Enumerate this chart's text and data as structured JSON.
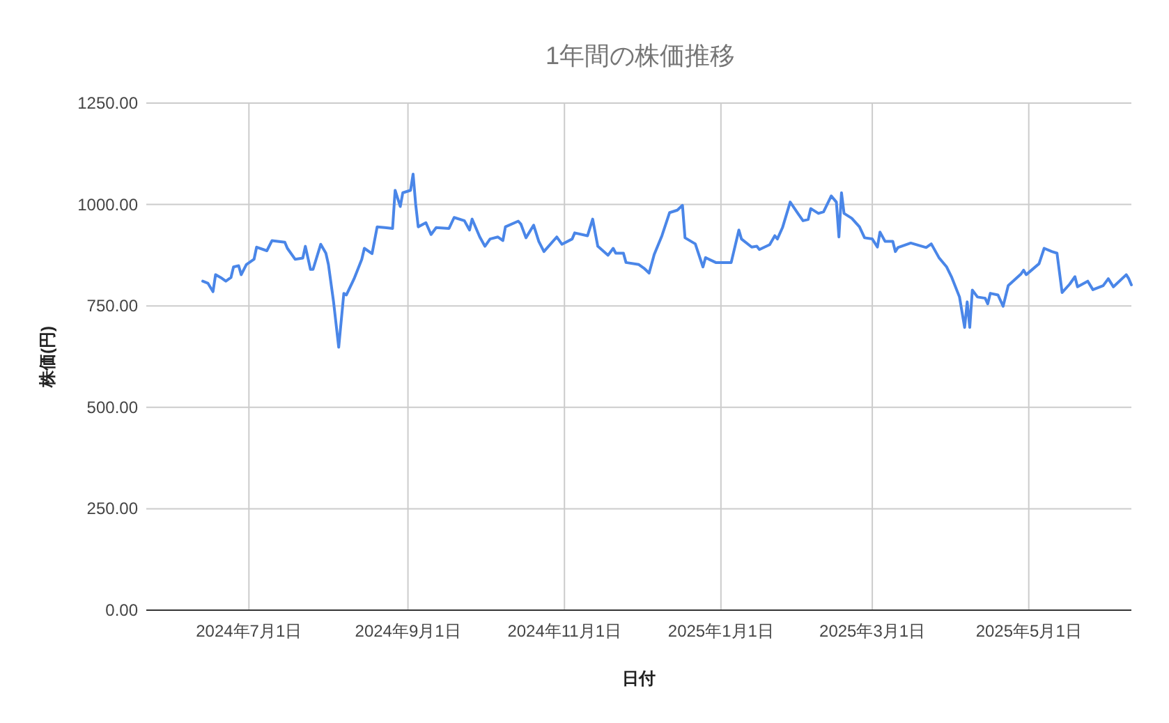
{
  "chart_data": {
    "type": "line",
    "title": "1年間の株価推移",
    "xlabel": "日付",
    "ylabel": "株価(円)",
    "grid": true,
    "xlim": [
      "2024-05-22",
      "2025-06-10"
    ],
    "ylim": [
      0,
      1250
    ],
    "xticks": [
      {
        "value": "2024-07-01",
        "label": "2024年7月1日"
      },
      {
        "value": "2024-09-01",
        "label": "2024年9月1日"
      },
      {
        "value": "2024-11-01",
        "label": "2024年11月1日"
      },
      {
        "value": "2025-01-01",
        "label": "2025年1月1日"
      },
      {
        "value": "2025-03-01",
        "label": "2025年3月1日"
      },
      {
        "value": "2025-05-01",
        "label": "2025年5月1日"
      }
    ],
    "yticks": [
      {
        "value": 0,
        "label": "0.00"
      },
      {
        "value": 250,
        "label": "250.00"
      },
      {
        "value": 500,
        "label": "500.00"
      },
      {
        "value": 750,
        "label": "750.00"
      },
      {
        "value": 1000,
        "label": "1000.00"
      },
      {
        "value": 1250,
        "label": "1250.00"
      }
    ],
    "x": [
      "2024-06-13",
      "2024-06-15",
      "2024-06-17",
      "2024-06-18",
      "2024-06-20",
      "2024-06-22",
      "2024-06-24",
      "2024-06-25",
      "2024-06-27",
      "2024-06-28",
      "2024-06-30",
      "2024-07-03",
      "2024-07-04",
      "2024-07-08",
      "2024-07-10",
      "2024-07-15",
      "2024-07-16",
      "2024-07-19",
      "2024-07-22",
      "2024-07-23",
      "2024-07-25",
      "2024-07-26",
      "2024-07-29",
      "2024-07-31",
      "2024-08-01",
      "2024-08-03",
      "2024-08-05",
      "2024-08-07",
      "2024-08-08",
      "2024-08-11",
      "2024-08-14",
      "2024-08-15",
      "2024-08-18",
      "2024-08-20",
      "2024-08-23",
      "2024-08-26",
      "2024-08-27",
      "2024-08-29",
      "2024-08-30",
      "2024-09-02",
      "2024-09-03",
      "2024-09-04",
      "2024-09-05",
      "2024-09-08",
      "2024-09-10",
      "2024-09-12",
      "2024-09-17",
      "2024-09-19",
      "2024-09-23",
      "2024-09-25",
      "2024-09-26",
      "2024-09-29",
      "2024-10-01",
      "2024-10-03",
      "2024-10-06",
      "2024-10-08",
      "2024-10-09",
      "2024-10-14",
      "2024-10-15",
      "2024-10-17",
      "2024-10-20",
      "2024-10-22",
      "2024-10-24",
      "2024-10-29",
      "2024-10-31",
      "2024-11-04",
      "2024-11-05",
      "2024-11-10",
      "2024-11-12",
      "2024-11-14",
      "2024-11-18",
      "2024-11-20",
      "2024-11-21",
      "2024-11-24",
      "2024-11-25",
      "2024-11-30",
      "2024-12-02",
      "2024-12-04",
      "2024-12-06",
      "2024-12-09",
      "2024-12-12",
      "2024-12-15",
      "2024-12-17",
      "2024-12-18",
      "2024-12-22",
      "2024-12-25",
      "2024-12-26",
      "2024-12-30",
      "2025-01-05",
      "2025-01-08",
      "2025-01-09",
      "2025-01-13",
      "2025-01-15",
      "2025-01-16",
      "2025-01-20",
      "2025-01-22",
      "2025-01-23",
      "2025-01-25",
      "2025-01-28",
      "2025-01-31",
      "2025-02-02",
      "2025-02-04",
      "2025-02-05",
      "2025-02-08",
      "2025-02-10",
      "2025-02-13",
      "2025-02-15",
      "2025-02-16",
      "2025-02-17",
      "2025-02-18",
      "2025-02-21",
      "2025-02-24",
      "2025-02-26",
      "2025-03-01",
      "2025-03-03",
      "2025-03-04",
      "2025-03-06",
      "2025-03-09",
      "2025-03-10",
      "2025-03-11",
      "2025-03-16",
      "2025-03-22",
      "2025-03-24",
      "2025-03-27",
      "2025-03-30",
      "2025-04-01",
      "2025-04-04",
      "2025-04-06",
      "2025-04-07",
      "2025-04-08",
      "2025-04-09",
      "2025-04-11",
      "2025-04-14",
      "2025-04-15",
      "2025-04-16",
      "2025-04-19",
      "2025-04-21",
      "2025-04-23",
      "2025-04-28",
      "2025-04-29",
      "2025-04-30",
      "2025-05-05",
      "2025-05-07",
      "2025-05-10",
      "2025-05-12",
      "2025-05-14",
      "2025-05-17",
      "2025-05-19",
      "2025-05-20",
      "2025-05-24",
      "2025-05-26",
      "2025-05-30",
      "2025-06-01",
      "2025-06-03",
      "2025-06-08",
      "2025-06-09",
      "2025-06-10"
    ],
    "series": [
      {
        "color": "#4a86e8",
        "values": [
          811,
          806,
          785,
          827,
          820,
          811,
          820,
          846,
          849,
          827,
          852,
          865,
          895,
          886,
          911,
          907,
          892,
          865,
          868,
          897,
          840,
          840,
          902,
          880,
          852,
          760,
          648,
          781,
          777,
          817,
          865,
          892,
          879,
          945,
          943,
          941,
          1035,
          995,
          1029,
          1035,
          1075,
          1001,
          945,
          955,
          926,
          943,
          941,
          968,
          960,
          937,
          964,
          920,
          897,
          915,
          920,
          911,
          945,
          959,
          952,
          918,
          949,
          909,
          884,
          920,
          902,
          915,
          930,
          923,
          964,
          897,
          875,
          892,
          880,
          880,
          857,
          852,
          843,
          831,
          877,
          923,
          980,
          986,
          998,
          918,
          903,
          846,
          869,
          857,
          857,
          937,
          915,
          895,
          897,
          889,
          901,
          923,
          915,
          943,
          1006,
          978,
          960,
          963,
          990,
          978,
          982,
          1021,
          1006,
          920,
          1029,
          978,
          966,
          945,
          918,
          915,
          895,
          932,
          909,
          909,
          884,
          894,
          905,
          894,
          903,
          869,
          846,
          820,
          772,
          697,
          760,
          697,
          789,
          772,
          769,
          755,
          781,
          777,
          749,
          800,
          829,
          838,
          827,
          854,
          892,
          884,
          880,
          783,
          804,
          822,
          797,
          811,
          790,
          800,
          817,
          797,
          827,
          817,
          802
        ]
      }
    ]
  }
}
